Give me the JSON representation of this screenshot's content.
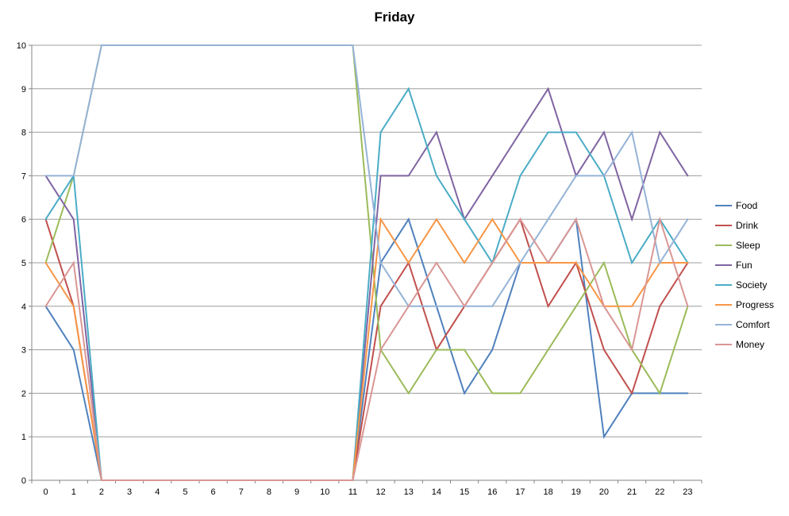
{
  "title": "Friday",
  "chart_data": {
    "type": "line",
    "title": "Friday",
    "xlabel": "",
    "ylabel": "",
    "x_tick_labels": [
      "0",
      "1",
      "2",
      "3",
      "4",
      "5",
      "6",
      "7",
      "8",
      "9",
      "10",
      "11",
      "12",
      "13",
      "14",
      "15",
      "16",
      "17",
      "18",
      "19",
      "20",
      "21",
      "22",
      "23"
    ],
    "y_tick_labels": [
      "0",
      "1",
      "2",
      "3",
      "4",
      "5",
      "6",
      "7",
      "8",
      "9",
      "10"
    ],
    "ylim": [
      0,
      10
    ],
    "grid": "horizontal",
    "legend_position": "right",
    "gridline_color": "#9d9d9d",
    "axis_color": "#868686",
    "text_color": "#000000",
    "series": [
      {
        "name": "Food",
        "color": "#4f81bd",
        "values": [
          4,
          3,
          0,
          0,
          0,
          0,
          0,
          0,
          0,
          0,
          0,
          0,
          5,
          6,
          4,
          2,
          3,
          5,
          5,
          6,
          1,
          2,
          2,
          2
        ]
      },
      {
        "name": "Drink",
        "color": "#c0504d",
        "values": [
          6,
          4,
          0,
          0,
          0,
          0,
          0,
          0,
          0,
          0,
          0,
          0,
          4,
          5,
          3,
          4,
          5,
          6,
          4,
          5,
          3,
          2,
          4,
          5
        ]
      },
      {
        "name": "Sleep",
        "color": "#9bbb59",
        "values": [
          5,
          7,
          10,
          10,
          10,
          10,
          10,
          10,
          10,
          10,
          10,
          10,
          3,
          2,
          3,
          3,
          2,
          2,
          3,
          4,
          5,
          3,
          2,
          4
        ]
      },
      {
        "name": "Fun",
        "color": "#8064a2",
        "values": [
          7,
          6,
          0,
          0,
          0,
          0,
          0,
          0,
          0,
          0,
          0,
          0,
          7,
          7,
          8,
          6,
          7,
          8,
          9,
          7,
          8,
          6,
          8,
          7
        ]
      },
      {
        "name": "Society",
        "color": "#4bacc6",
        "values": [
          6,
          7,
          0,
          0,
          0,
          0,
          0,
          0,
          0,
          0,
          0,
          0,
          8,
          9,
          7,
          6,
          5,
          7,
          8,
          8,
          7,
          5,
          6,
          5
        ]
      },
      {
        "name": "Progress",
        "color": "#f79646",
        "values": [
          5,
          4,
          0,
          0,
          0,
          0,
          0,
          0,
          0,
          0,
          0,
          0,
          6,
          5,
          6,
          5,
          6,
          5,
          5,
          5,
          4,
          4,
          5,
          5
        ]
      },
      {
        "name": "Comfort",
        "color": "#95b3d7",
        "values": [
          7,
          7,
          10,
          10,
          10,
          10,
          10,
          10,
          10,
          10,
          10,
          10,
          5,
          4,
          4,
          4,
          4,
          5,
          6,
          7,
          7,
          8,
          5,
          6
        ]
      },
      {
        "name": "Money",
        "color": "#d99694",
        "values": [
          4,
          5,
          0,
          0,
          0,
          0,
          0,
          0,
          0,
          0,
          0,
          0,
          3,
          4,
          5,
          4,
          5,
          6,
          5,
          6,
          4,
          3,
          6,
          4
        ]
      }
    ]
  }
}
